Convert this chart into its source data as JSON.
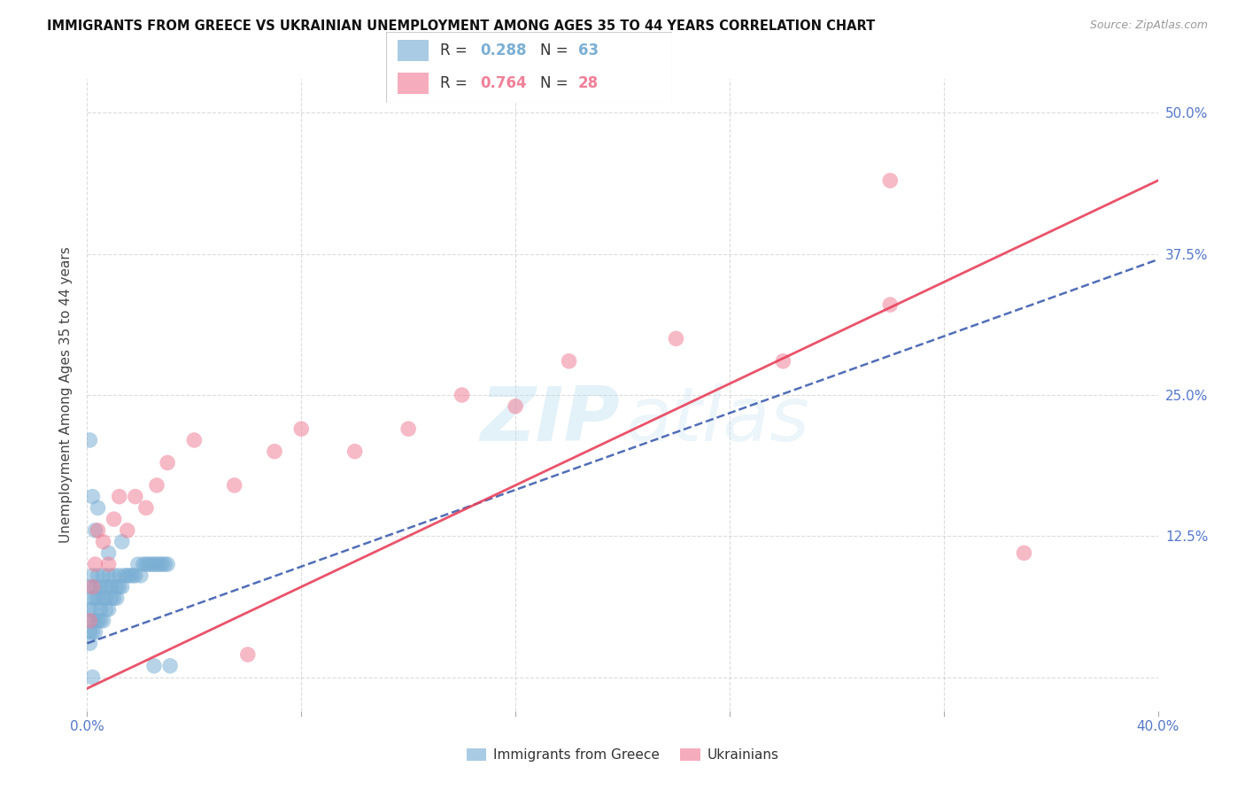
{
  "title": "IMMIGRANTS FROM GREECE VS UKRAINIAN UNEMPLOYMENT AMONG AGES 35 TO 44 YEARS CORRELATION CHART",
  "source": "Source: ZipAtlas.com",
  "ylabel": "Unemployment Among Ages 35 to 44 years",
  "xlim": [
    0.0,
    0.4
  ],
  "ylim": [
    -0.03,
    0.53
  ],
  "yticks": [
    0.0,
    0.125,
    0.25,
    0.375,
    0.5
  ],
  "ytick_labels": [
    "",
    "12.5%",
    "25.0%",
    "37.5%",
    "50.0%"
  ],
  "xticks": [
    0.0,
    0.08,
    0.16,
    0.24,
    0.32,
    0.4
  ],
  "xtick_labels": [
    "0.0%",
    "",
    "",
    "",
    "",
    "40.0%"
  ],
  "blue_R": 0.288,
  "blue_N": 63,
  "pink_R": 0.764,
  "pink_N": 28,
  "blue_color": "#7BAFD4",
  "pink_color": "#F08098",
  "blue_line_color": "#3355AA",
  "pink_line_color": "#E8405A",
  "tick_color": "#5577CC",
  "grid_color": "#CCCCCC",
  "ylabel_color": "#444444",
  "title_color": "#111111",
  "source_color": "#999999",
  "blue_scatter_x": [
    0.001,
    0.001,
    0.001,
    0.001,
    0.002,
    0.002,
    0.002,
    0.002,
    0.002,
    0.003,
    0.003,
    0.003,
    0.003,
    0.004,
    0.004,
    0.004,
    0.005,
    0.005,
    0.005,
    0.006,
    0.006,
    0.006,
    0.007,
    0.007,
    0.007,
    0.008,
    0.008,
    0.008,
    0.009,
    0.009,
    0.01,
    0.01,
    0.011,
    0.011,
    0.012,
    0.012,
    0.013,
    0.014,
    0.015,
    0.016,
    0.017,
    0.018,
    0.019,
    0.02,
    0.021,
    0.022,
    0.023,
    0.024,
    0.025,
    0.026,
    0.027,
    0.028,
    0.029,
    0.03,
    0.001,
    0.002,
    0.003,
    0.004,
    0.008,
    0.013,
    0.002,
    0.025,
    0.031
  ],
  "blue_scatter_y": [
    0.04,
    0.03,
    0.06,
    0.08,
    0.05,
    0.04,
    0.07,
    0.06,
    0.09,
    0.04,
    0.05,
    0.07,
    0.08,
    0.05,
    0.07,
    0.09,
    0.05,
    0.06,
    0.08,
    0.05,
    0.07,
    0.09,
    0.06,
    0.07,
    0.08,
    0.06,
    0.08,
    0.09,
    0.07,
    0.08,
    0.07,
    0.09,
    0.07,
    0.08,
    0.08,
    0.09,
    0.08,
    0.09,
    0.09,
    0.09,
    0.09,
    0.09,
    0.1,
    0.09,
    0.1,
    0.1,
    0.1,
    0.1,
    0.1,
    0.1,
    0.1,
    0.1,
    0.1,
    0.1,
    0.21,
    0.16,
    0.13,
    0.15,
    0.11,
    0.12,
    0.0,
    0.01,
    0.01
  ],
  "pink_scatter_x": [
    0.001,
    0.002,
    0.003,
    0.004,
    0.006,
    0.008,
    0.01,
    0.012,
    0.015,
    0.018,
    0.022,
    0.026,
    0.03,
    0.04,
    0.055,
    0.06,
    0.07,
    0.08,
    0.1,
    0.12,
    0.14,
    0.16,
    0.18,
    0.22,
    0.26,
    0.3,
    0.35,
    0.3
  ],
  "pink_scatter_y": [
    0.05,
    0.08,
    0.1,
    0.13,
    0.12,
    0.1,
    0.14,
    0.16,
    0.13,
    0.16,
    0.15,
    0.17,
    0.19,
    0.21,
    0.17,
    0.02,
    0.2,
    0.22,
    0.2,
    0.22,
    0.25,
    0.24,
    0.28,
    0.3,
    0.28,
    0.33,
    0.11,
    0.44
  ]
}
